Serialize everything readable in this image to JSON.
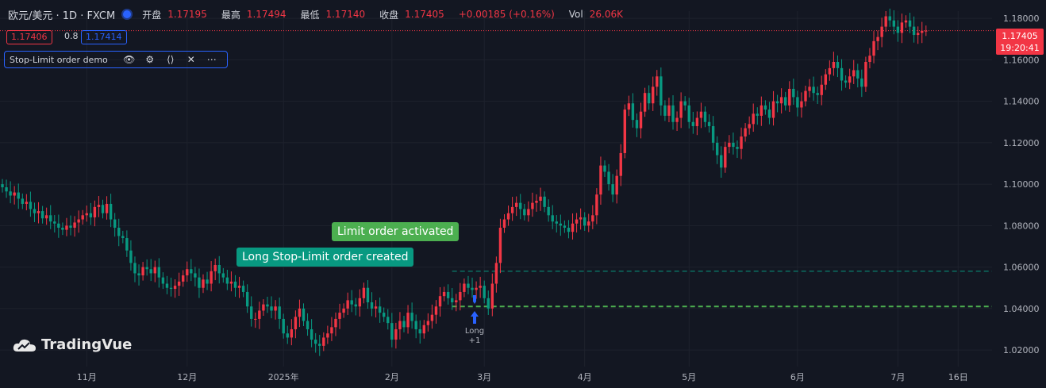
{
  "legend": {
    "symbol": "欧元/美元 · 1D · FXCM",
    "open_label": "开盘",
    "open": "1.17195",
    "high_label": "最高",
    "high": "1.17494",
    "low_label": "最低",
    "low": "1.17140",
    "close_label": "收盘",
    "close": "1.17405",
    "change": "+0.00185 (+0.16%)",
    "vol_label": "Vol",
    "vol": "26.06K"
  },
  "quote": {
    "bid": "1.17406",
    "spread": "0.8",
    "ask": "1.17414"
  },
  "indicator": {
    "name": "Stop-Limit order demo"
  },
  "watermark": "TradingVue",
  "last_price": {
    "value": "1.17405",
    "countdown": "19:20:41"
  },
  "colors": {
    "background": "#131722",
    "up": "#f23645",
    "down": "#089981",
    "limit_line": "#4caf50",
    "stop_line": "#089981",
    "marker": "#2962ff"
  },
  "chart_data": {
    "type": "candlestick",
    "title": "",
    "xlabel": "",
    "ylabel": "",
    "ylim": [
      1.012,
      1.1835
    ],
    "y_ticks": [
      1.02,
      1.04,
      1.06,
      1.08,
      1.1,
      1.12,
      1.14,
      1.16,
      1.18
    ],
    "y_tick_labels": [
      "1.02000",
      "1.04000",
      "1.06000",
      "1.08000",
      "1.10000",
      "1.12000",
      "1.14000",
      "1.16000",
      "1.18000"
    ],
    "x_ticks": [
      {
        "index": 21,
        "label": "11月"
      },
      {
        "index": 46,
        "label": "12月"
      },
      {
        "index": 70,
        "label": "2025年"
      },
      {
        "index": 97,
        "label": "2月"
      },
      {
        "index": 120,
        "label": "3月"
      },
      {
        "index": 145,
        "label": "4月"
      },
      {
        "index": 171,
        "label": "5月"
      },
      {
        "index": 198,
        "label": "6月"
      },
      {
        "index": 223,
        "label": "7月"
      },
      {
        "index": 238,
        "label": "16日"
      }
    ],
    "grid": true,
    "close": [
      1.0985,
      1.0965,
      1.0945,
      1.096,
      1.093,
      1.0905,
      1.0915,
      1.088,
      1.086,
      1.087,
      1.0835,
      1.085,
      1.082,
      1.081,
      1.079,
      1.078,
      1.08,
      1.079,
      1.0815,
      1.083,
      1.085,
      1.086,
      1.084,
      1.089,
      1.09,
      1.086,
      1.0905,
      1.083,
      1.079,
      1.075,
      1.074,
      1.068,
      1.062,
      1.057,
      1.056,
      1.06,
      1.059,
      1.057,
      1.06,
      1.055,
      1.052,
      1.05,
      1.0495,
      1.051,
      1.053,
      1.056,
      1.059,
      1.057,
      1.055,
      1.05,
      1.054,
      1.052,
      1.058,
      1.061,
      1.057,
      1.055,
      1.052,
      1.053,
      1.05,
      1.051,
      1.048,
      1.041,
      1.035,
      1.035,
      1.039,
      1.042,
      1.041,
      1.039,
      1.041,
      1.035,
      1.028,
      1.026,
      1.03,
      1.036,
      1.04,
      1.034,
      1.03,
      1.025,
      1.023,
      1.022,
      1.026,
      1.028,
      1.031,
      1.035,
      1.038,
      1.04,
      1.044,
      1.042,
      1.041,
      1.045,
      1.05,
      1.043,
      1.04,
      1.041,
      1.038,
      1.036,
      1.033,
      1.025,
      1.03,
      1.034,
      1.031,
      1.038,
      1.034,
      1.03,
      1.028,
      1.032,
      1.034,
      1.037,
      1.041,
      1.046,
      1.048,
      1.045,
      1.043,
      1.044,
      1.048,
      1.052,
      1.05,
      1.049,
      1.05,
      1.051,
      1.045,
      1.04,
      1.052,
      1.062,
      1.079,
      1.083,
      1.086,
      1.089,
      1.091,
      1.088,
      1.085,
      1.088,
      1.091,
      1.092,
      1.094,
      1.089,
      1.085,
      1.082,
      1.081,
      1.08,
      1.079,
      1.077,
      1.081,
      1.083,
      1.084,
      1.08,
      1.082,
      1.085,
      1.095,
      1.109,
      1.106,
      1.1,
      1.095,
      1.104,
      1.115,
      1.136,
      1.139,
      1.131,
      1.127,
      1.135,
      1.144,
      1.139,
      1.147,
      1.152,
      1.138,
      1.133,
      1.138,
      1.13,
      1.132,
      1.14,
      1.138,
      1.13,
      1.128,
      1.132,
      1.135,
      1.13,
      1.128,
      1.12,
      1.114,
      1.108,
      1.118,
      1.12,
      1.118,
      1.117,
      1.123,
      1.127,
      1.129,
      1.134,
      1.133,
      1.138,
      1.136,
      1.132,
      1.14,
      1.139,
      1.142,
      1.138,
      1.146,
      1.142,
      1.137,
      1.14,
      1.145,
      1.147,
      1.144,
      1.143,
      1.148,
      1.153,
      1.156,
      1.159,
      1.156,
      1.15,
      1.149,
      1.152,
      1.155,
      1.151,
      1.147,
      1.159,
      1.162,
      1.169,
      1.171,
      1.176,
      1.181,
      1.179,
      1.176,
      1.173,
      1.178,
      1.179,
      1.176,
      1.172,
      1.173,
      1.174,
      1.17405
    ]
  },
  "annotations": {
    "limit_activated": "Limit order activated",
    "stop_limit_created": "Long Stop-Limit order created",
    "long_marker_line1": "Long",
    "long_marker_line2": "+1"
  },
  "levels": {
    "stop_price": 1.058,
    "limit_price": 1.041
  }
}
